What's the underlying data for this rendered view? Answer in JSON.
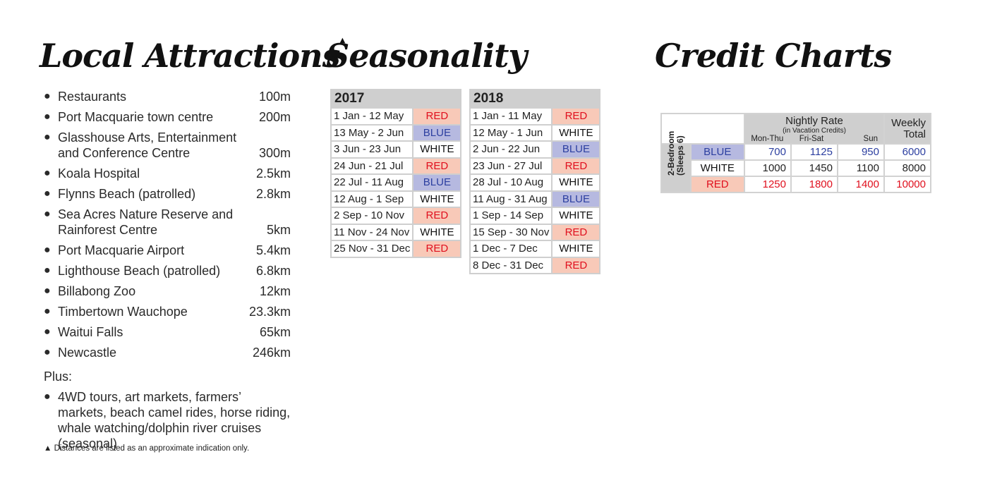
{
  "attractions": {
    "title": "Local Attractions",
    "title_mark": "▲",
    "items": [
      {
        "name": "Restaurants",
        "distance": "100m"
      },
      {
        "name": "Port Macquarie town centre",
        "distance": "200m"
      },
      {
        "name": "Glasshouse Arts, Entertainment and Conference Centre",
        "distance": "300m"
      },
      {
        "name": "Koala Hospital",
        "distance": "2.5km"
      },
      {
        "name": "Flynns Beach (patrolled)",
        "distance": "2.8km"
      },
      {
        "name": "Sea Acres Nature Reserve and Rainforest Centre",
        "distance": "5km"
      },
      {
        "name": "Port Macquarie Airport",
        "distance": "5.4km"
      },
      {
        "name": "Lighthouse Beach (patrolled)",
        "distance": "6.8km"
      },
      {
        "name": "Billabong Zoo",
        "distance": "12km"
      },
      {
        "name": "Timbertown Wauchope",
        "distance": "23.3km"
      },
      {
        "name": "Waitui Falls",
        "distance": "65km"
      },
      {
        "name": "Newcastle",
        "distance": "246km"
      }
    ],
    "plus_label": "Plus:",
    "extra": "4WD tours, art markets, farmers’ markets, beach camel rides, horse riding, whale watching/dolphin river cruises (seasonal)",
    "footnote": "▲ Distances are listed as an approximate indication only."
  },
  "seasonality": {
    "title": "Seasonality",
    "tables": [
      {
        "year": "2017",
        "rows": [
          {
            "range": "1 Jan - 12 May",
            "season": "RED"
          },
          {
            "range": "13 May - 2 Jun",
            "season": "BLUE"
          },
          {
            "range": "3 Jun - 23 Jun",
            "season": "WHITE"
          },
          {
            "range": "24 Jun - 21 Jul",
            "season": "RED"
          },
          {
            "range": "22 Jul - 11 Aug",
            "season": "BLUE"
          },
          {
            "range": "12 Aug - 1 Sep",
            "season": "WHITE"
          },
          {
            "range": "2 Sep - 10 Nov",
            "season": "RED"
          },
          {
            "range": "11 Nov - 24 Nov",
            "season": "WHITE"
          },
          {
            "range": "25 Nov - 31 Dec",
            "season": "RED"
          }
        ]
      },
      {
        "year": "2018",
        "rows": [
          {
            "range": "1 Jan - 11 May",
            "season": "RED"
          },
          {
            "range": "12 May - 1 Jun",
            "season": "WHITE"
          },
          {
            "range": "2 Jun - 22 Jun",
            "season": "BLUE"
          },
          {
            "range": "23 Jun - 27 Jul",
            "season": "RED"
          },
          {
            "range": "28 Jul - 10 Aug",
            "season": "WHITE"
          },
          {
            "range": "11 Aug - 31 Aug",
            "season": "BLUE"
          },
          {
            "range": "1 Sep - 14 Sep",
            "season": "WHITE"
          },
          {
            "range": "15 Sep - 30 Nov",
            "season": "RED"
          },
          {
            "range": "1 Dec - 7 Dec",
            "season": "WHITE"
          },
          {
            "range": "8 Dec - 31 Dec",
            "season": "RED"
          }
        ]
      }
    ]
  },
  "credit": {
    "title": "Credit Charts",
    "header_main": "Nightly Rate",
    "header_sub": "(in Vacation Credits)",
    "weekly_line1": "Weekly",
    "weekly_line2": "Total",
    "cols": [
      "Mon-Thu",
      "Fri-Sat",
      "Sun"
    ],
    "unit_label_1": "2-Bedroom",
    "unit_label_2": "(Sleeps 6)",
    "rows": [
      {
        "season": "BLUE",
        "values": [
          "700",
          "1125",
          "950",
          "6000"
        ]
      },
      {
        "season": "WHITE",
        "values": [
          "1000",
          "1450",
          "1100",
          "8000"
        ]
      },
      {
        "season": "RED",
        "values": [
          "1250",
          "1800",
          "1400",
          "10000"
        ]
      }
    ],
    "colors": {
      "red": "#e0101e",
      "blue": "#2c3fa0",
      "red_bg": "#f8c9b8",
      "blue_bg": "#b6b9e0"
    }
  }
}
